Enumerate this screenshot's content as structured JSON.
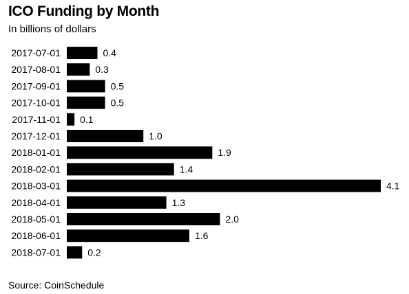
{
  "title": "ICO Funding by Month",
  "subtitle": "In billions of dollars",
  "source": "Source: CoinSchedule",
  "chart_data": {
    "type": "bar",
    "orientation": "horizontal",
    "title": "ICO Funding by Month",
    "subtitle": "In billions of dollars",
    "categories": [
      "2017-07-01",
      "2017-08-01",
      "2017-09-01",
      "2017-10-01",
      "2017-11-01",
      "2017-12-01",
      "2018-01-01",
      "2018-02-01",
      "2018-03-01",
      "2018-04-01",
      "2018-05-01",
      "2018-06-01",
      "2018-07-01"
    ],
    "values": [
      0.4,
      0.3,
      0.5,
      0.5,
      0.1,
      1.0,
      1.9,
      1.4,
      4.1,
      1.3,
      2.0,
      1.6,
      0.2
    ],
    "value_labels": [
      "0.4",
      "0.3",
      "0.5",
      "0.5",
      "0.1",
      "1.0",
      "1.9",
      "1.4",
      "4.1",
      "1.3",
      "2.0",
      "1.6",
      "0.2"
    ],
    "xlim": [
      0,
      4.1
    ],
    "grid": false,
    "legend": "none",
    "bar_color": "#000000"
  }
}
